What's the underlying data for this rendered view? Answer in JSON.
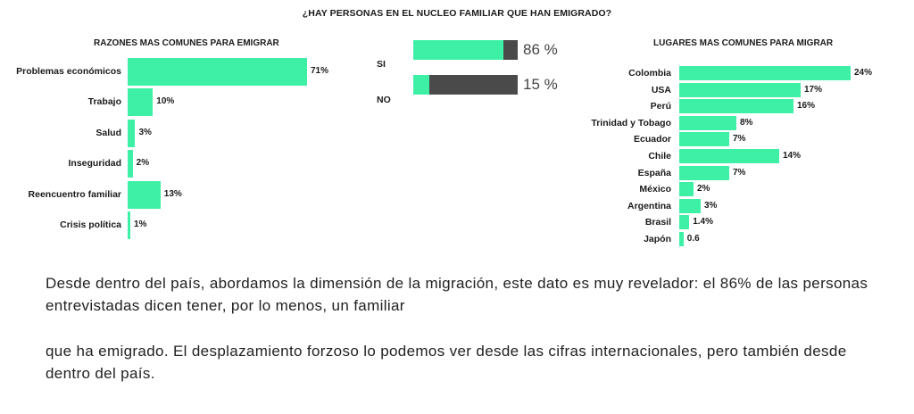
{
  "main_title": "¿HAY PERSONAS EN EL NUCLEO FAMILIAR QUE HAN EMIGRADO?",
  "chart_data": [
    {
      "type": "bar",
      "orientation": "horizontal",
      "title": "RAZONES MAS COMUNES PARA EMIGRAR",
      "categories": [
        "Problemas económicos",
        "Trabajo",
        "Salud",
        "Inseguridad",
        "Reencuentro familiar",
        "Crisis política"
      ],
      "values": [
        71,
        10,
        3,
        2,
        13,
        1
      ],
      "labels": [
        "71%",
        "10%",
        "3%",
        "2%",
        "13%",
        "1%"
      ],
      "unit": "%",
      "xlim": [
        0,
        71
      ],
      "color": "#3df0a6"
    },
    {
      "type": "bar",
      "orientation": "horizontal",
      "stacked": true,
      "categories": [
        "SI",
        "NO"
      ],
      "values": [
        86,
        15
      ],
      "labels": [
        "86 %",
        "15 %"
      ],
      "unit": "%",
      "xlim": [
        0,
        100
      ],
      "colors": {
        "value": "#3df0a6",
        "remainder": "#4a4a4a"
      }
    },
    {
      "type": "bar",
      "orientation": "horizontal",
      "title": "LUGARES MAS COMUNES PARA MIGRAR",
      "categories": [
        "Colombia",
        "USA",
        "Perú",
        "Trinidad y Tobago",
        "Ecuador",
        "Chile",
        "España",
        "México",
        "Argentina",
        "Brasil",
        "Japón"
      ],
      "values": [
        24,
        17,
        16,
        8,
        7,
        14,
        7,
        2,
        3,
        1.4,
        0.6
      ],
      "labels": [
        "24%",
        "17%",
        "16%",
        "8%",
        "7%",
        "14%",
        "7%",
        "2%",
        "3%",
        "1.4%",
        "0.6"
      ],
      "unit": "%",
      "xlim": [
        0,
        24
      ],
      "color": "#3df0a6"
    }
  ],
  "paragraphs": [
    "Desde dentro del país, abordamos la dimensión de la migración, este dato es muy revelador: el 86% de las personas entrevistadas dicen tener, por lo menos, un familiar",
    "que ha emigrado. El desplazamiento forzoso lo podemos ver desde las cifras internacionales, pero también desde dentro del país."
  ]
}
